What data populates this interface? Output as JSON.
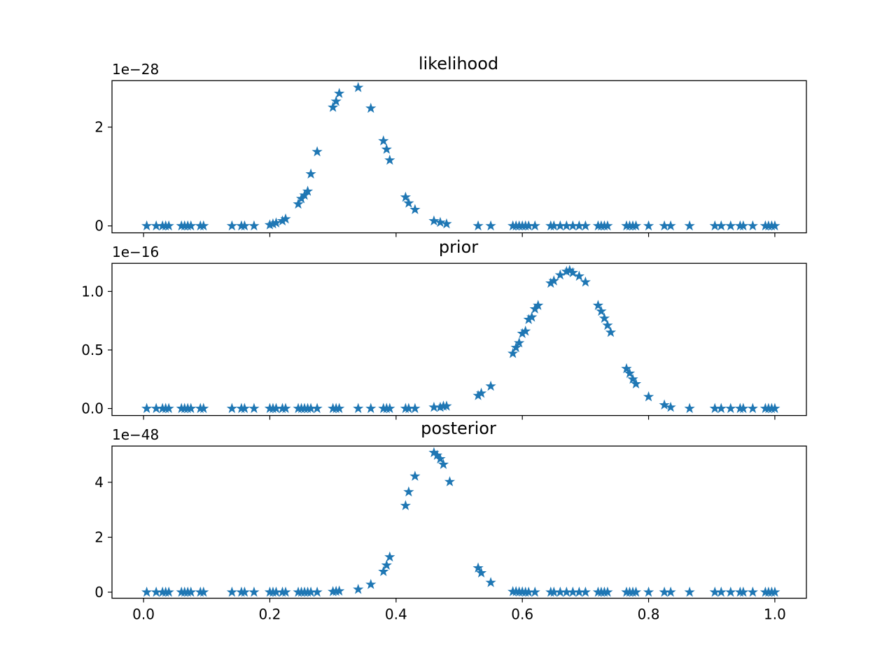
{
  "chart_data": [
    {
      "type": "scatter",
      "title": "likelihood",
      "offset_label": "1e−28",
      "marker": "*",
      "color": "#1f77b4",
      "xlim": [
        -0.05,
        1.05
      ],
      "ylim": [
        -0.14,
        2.94
      ],
      "xticks": [
        0.0,
        0.2,
        0.4,
        0.6,
        0.8,
        1.0
      ],
      "xtick_labels_visible": false,
      "yticks": [
        0,
        2
      ],
      "ytick_labels": [
        "0",
        "2"
      ],
      "x": [
        0.005,
        0.02,
        0.03,
        0.035,
        0.04,
        0.06,
        0.065,
        0.07,
        0.075,
        0.09,
        0.095,
        0.14,
        0.155,
        0.16,
        0.175,
        0.2,
        0.205,
        0.21,
        0.22,
        0.225,
        0.245,
        0.25,
        0.255,
        0.26,
        0.265,
        0.275,
        0.3,
        0.305,
        0.31,
        0.34,
        0.36,
        0.38,
        0.385,
        0.39,
        0.415,
        0.42,
        0.43,
        0.46,
        0.47,
        0.48,
        0.53,
        0.55,
        0.585,
        0.59,
        0.595,
        0.6,
        0.605,
        0.61,
        0.62,
        0.645,
        0.65,
        0.66,
        0.67,
        0.68,
        0.69,
        0.7,
        0.72,
        0.725,
        0.73,
        0.735,
        0.765,
        0.77,
        0.775,
        0.78,
        0.8,
        0.825,
        0.835,
        0.865,
        0.905,
        0.915,
        0.93,
        0.945,
        0.95,
        0.965,
        0.985,
        0.99,
        0.995,
        1.0
      ],
      "y": [
        0.0,
        0.0,
        0.0,
        0.0,
        0.0,
        0.0,
        0.0,
        0.0,
        0.0,
        0.0,
        0.0,
        0.0,
        0.0,
        0.0,
        0.0,
        0.02,
        0.04,
        0.06,
        0.1,
        0.14,
        0.44,
        0.55,
        0.62,
        0.7,
        1.05,
        1.5,
        2.4,
        2.52,
        2.68,
        2.8,
        2.38,
        1.72,
        1.55,
        1.33,
        0.58,
        0.46,
        0.33,
        0.1,
        0.07,
        0.04,
        0.0,
        0.0,
        0.0,
        0.0,
        0.0,
        0.0,
        0.0,
        0.0,
        0.0,
        0.0,
        0.0,
        0.0,
        0.0,
        0.0,
        0.0,
        0.0,
        0.0,
        0.0,
        0.0,
        0.0,
        0.0,
        0.0,
        0.0,
        0.0,
        0.0,
        0.0,
        0.0,
        0.0,
        0.0,
        0.0,
        0.0,
        0.0,
        0.0,
        0.0,
        0.0,
        0.0,
        0.0,
        0.0
      ]
    },
    {
      "type": "scatter",
      "title": "prior",
      "offset_label": "1e−16",
      "marker": "*",
      "color": "#1f77b4",
      "xlim": [
        -0.05,
        1.05
      ],
      "ylim": [
        -0.06,
        1.24
      ],
      "xticks": [
        0.0,
        0.2,
        0.4,
        0.6,
        0.8,
        1.0
      ],
      "xtick_labels_visible": false,
      "yticks": [
        0.0,
        0.5,
        1.0
      ],
      "ytick_labels": [
        "0.0",
        "0.5",
        "1.0"
      ],
      "x": [
        0.005,
        0.02,
        0.03,
        0.035,
        0.04,
        0.06,
        0.065,
        0.07,
        0.075,
        0.09,
        0.095,
        0.14,
        0.155,
        0.16,
        0.175,
        0.2,
        0.205,
        0.21,
        0.22,
        0.225,
        0.245,
        0.25,
        0.255,
        0.26,
        0.265,
        0.275,
        0.3,
        0.305,
        0.31,
        0.34,
        0.36,
        0.38,
        0.385,
        0.39,
        0.415,
        0.42,
        0.43,
        0.46,
        0.47,
        0.475,
        0.48,
        0.53,
        0.535,
        0.55,
        0.585,
        0.59,
        0.595,
        0.6,
        0.605,
        0.61,
        0.615,
        0.62,
        0.625,
        0.645,
        0.65,
        0.66,
        0.67,
        0.675,
        0.68,
        0.69,
        0.7,
        0.72,
        0.725,
        0.73,
        0.735,
        0.74,
        0.765,
        0.77,
        0.775,
        0.78,
        0.8,
        0.825,
        0.835,
        0.865,
        0.905,
        0.915,
        0.93,
        0.945,
        0.95,
        0.965,
        0.985,
        0.99,
        0.995,
        1.0
      ],
      "y": [
        0.0,
        0.0,
        0.0,
        0.0,
        0.0,
        0.0,
        0.0,
        0.0,
        0.0,
        0.0,
        0.0,
        0.0,
        0.0,
        0.0,
        0.0,
        0.0,
        0.0,
        0.0,
        0.0,
        0.0,
        0.0,
        0.0,
        0.0,
        0.0,
        0.0,
        0.0,
        0.0,
        0.0,
        0.0,
        0.0,
        0.0,
        0.0,
        0.0,
        0.0,
        0.0,
        0.0,
        0.0,
        0.01,
        0.01,
        0.02,
        0.02,
        0.11,
        0.13,
        0.19,
        0.47,
        0.52,
        0.56,
        0.64,
        0.66,
        0.76,
        0.78,
        0.85,
        0.88,
        1.07,
        1.09,
        1.14,
        1.17,
        1.18,
        1.16,
        1.13,
        1.08,
        0.88,
        0.83,
        0.77,
        0.71,
        0.65,
        0.34,
        0.3,
        0.25,
        0.21,
        0.1,
        0.03,
        0.01,
        0.0,
        0.0,
        0.0,
        0.0,
        0.0,
        0.0,
        0.0,
        0.0,
        0.0,
        0.0,
        0.0
      ]
    },
    {
      "type": "scatter",
      "title": "posterior",
      "offset_label": "1e−48",
      "marker": "*",
      "color": "#1f77b4",
      "xlim": [
        -0.05,
        1.05
      ],
      "ylim": [
        -0.22,
        5.32
      ],
      "xticks": [
        0.0,
        0.2,
        0.4,
        0.6,
        0.8,
        1.0
      ],
      "xtick_labels_visible": true,
      "xtick_labels": [
        "0.0",
        "0.2",
        "0.4",
        "0.6",
        "0.8",
        "1.0"
      ],
      "yticks": [
        0,
        2,
        4
      ],
      "ytick_labels": [
        "0",
        "2",
        "4"
      ],
      "x": [
        0.005,
        0.02,
        0.03,
        0.035,
        0.04,
        0.06,
        0.065,
        0.07,
        0.075,
        0.09,
        0.095,
        0.14,
        0.155,
        0.16,
        0.175,
        0.2,
        0.205,
        0.21,
        0.22,
        0.225,
        0.245,
        0.25,
        0.255,
        0.26,
        0.265,
        0.275,
        0.3,
        0.305,
        0.31,
        0.34,
        0.36,
        0.38,
        0.385,
        0.39,
        0.415,
        0.42,
        0.43,
        0.46,
        0.465,
        0.47,
        0.475,
        0.485,
        0.53,
        0.535,
        0.55,
        0.585,
        0.59,
        0.595,
        0.6,
        0.605,
        0.61,
        0.62,
        0.645,
        0.65,
        0.66,
        0.67,
        0.68,
        0.69,
        0.7,
        0.72,
        0.725,
        0.73,
        0.735,
        0.765,
        0.77,
        0.775,
        0.78,
        0.8,
        0.825,
        0.835,
        0.865,
        0.905,
        0.915,
        0.93,
        0.945,
        0.95,
        0.965,
        0.985,
        0.99,
        0.995,
        1.0
      ],
      "y": [
        0.0,
        0.0,
        0.0,
        0.0,
        0.0,
        0.0,
        0.0,
        0.0,
        0.0,
        0.0,
        0.0,
        0.0,
        0.0,
        0.0,
        0.0,
        0.0,
        0.0,
        0.0,
        0.0,
        0.0,
        0.0,
        0.0,
        0.0,
        0.0,
        0.0,
        0.0,
        0.02,
        0.03,
        0.04,
        0.1,
        0.28,
        0.75,
        0.98,
        1.28,
        3.15,
        3.65,
        4.22,
        5.08,
        4.98,
        4.85,
        4.65,
        4.02,
        0.88,
        0.7,
        0.35,
        0.02,
        0.02,
        0.01,
        0.01,
        0.0,
        0.0,
        0.0,
        0.0,
        0.0,
        0.0,
        0.0,
        0.0,
        0.0,
        0.0,
        0.0,
        0.0,
        0.0,
        0.0,
        0.0,
        0.0,
        0.0,
        0.0,
        0.0,
        0.0,
        0.0,
        0.0,
        0.0,
        0.0,
        0.0,
        0.0,
        0.0,
        0.0,
        0.0,
        0.0,
        0.0,
        0.0
      ]
    }
  ]
}
